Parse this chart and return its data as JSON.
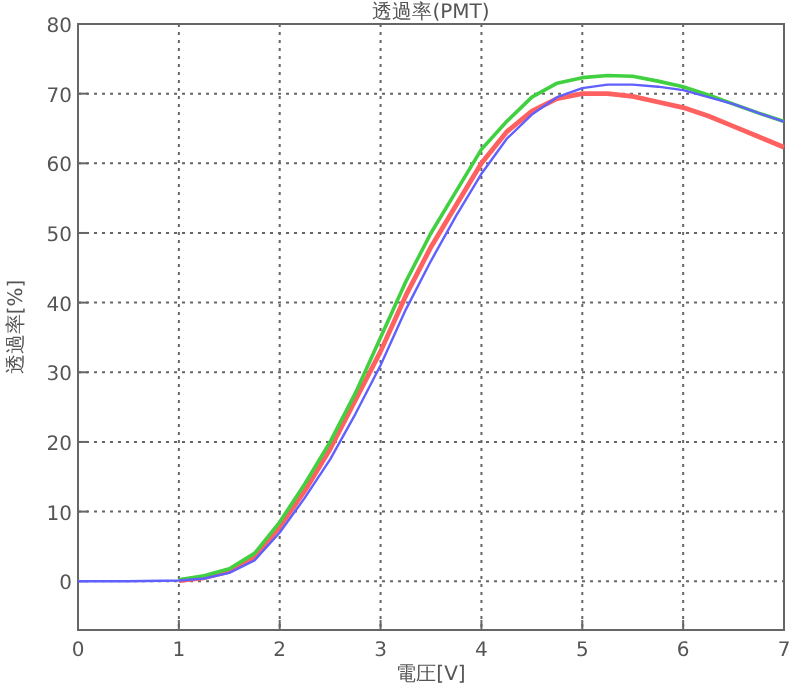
{
  "chart_data": {
    "type": "line",
    "title": "透過率(PMT)",
    "xlabel": "電圧[V]",
    "ylabel": "透過率[%]",
    "x": [
      0,
      0.5,
      1,
      1.25,
      1.5,
      1.75,
      2,
      2.25,
      2.5,
      2.75,
      3,
      3.25,
      3.5,
      3.75,
      4,
      4.25,
      4.5,
      4.75,
      5,
      5.25,
      5.5,
      5.75,
      6,
      6.25,
      6.5,
      6.75,
      7
    ],
    "series": [
      {
        "color": "#ff6060",
        "values": [
          null,
          null,
          0.1,
          0.5,
          1.4,
          3.5,
          7.8,
          13,
          19,
          26,
          33,
          41,
          48,
          54,
          60,
          64.5,
          67.5,
          69.3,
          70,
          70,
          69.6,
          68.8,
          68,
          66.8,
          65.3,
          63.8,
          62.3
        ]
      },
      {
        "color": "#40d040",
        "values": [
          null,
          null,
          0.2,
          0.8,
          1.8,
          4,
          8.5,
          14,
          20,
          27,
          35,
          43,
          50,
          56,
          62,
          66,
          69.5,
          71.5,
          72.3,
          72.6,
          72.5,
          71.8,
          71,
          69.8,
          68.5,
          67.2,
          66
        ]
      },
      {
        "color": "#6060ff",
        "values": [
          0,
          0,
          0.1,
          0.4,
          1.2,
          3,
          7,
          12,
          17.5,
          24,
          31,
          39,
          46,
          52.5,
          58.5,
          63.5,
          67,
          69.5,
          70.8,
          71.3,
          71.3,
          71,
          70.5,
          69.5,
          68.5,
          67.2,
          66
        ]
      }
    ],
    "xlim": [
      0,
      7
    ],
    "ylim": [
      -7,
      80
    ],
    "xticks": [
      0,
      1,
      2,
      3,
      4,
      5,
      6,
      7
    ],
    "yticks": [
      0,
      10,
      20,
      30,
      40,
      50,
      60,
      70,
      80
    ],
    "grid": true,
    "marker": "none",
    "line_style": "solid"
  }
}
